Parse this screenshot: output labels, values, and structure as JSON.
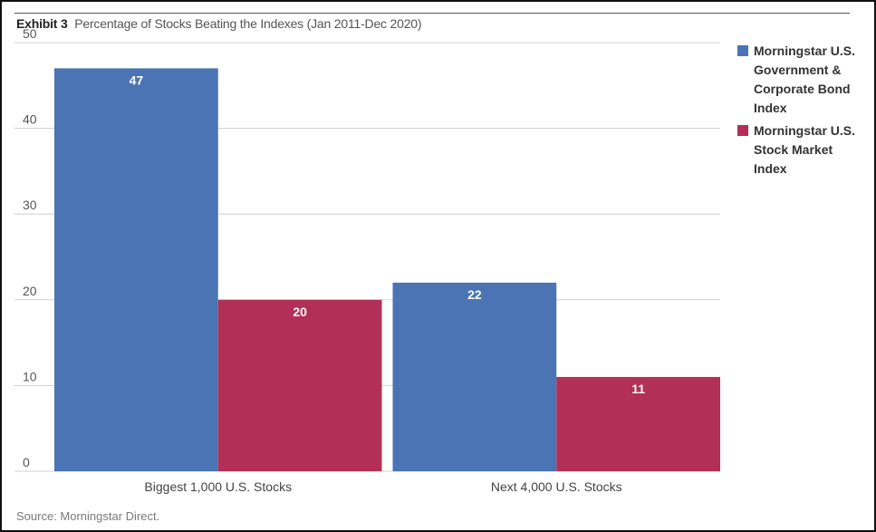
{
  "header": {
    "exhibit": "Exhibit 3",
    "title": "Percentage of Stocks Beating the Indexes (Jan 2011-Dec 2020)"
  },
  "source": "Source: Morningstar Direct.",
  "chart_data": {
    "type": "bar",
    "title": "Percentage of Stocks Beating the Indexes (Jan 2011-Dec 2020)",
    "xlabel": "",
    "ylabel": "",
    "categories": [
      "Biggest 1,000 U.S. Stocks",
      "Next 4,000 U.S. Stocks"
    ],
    "series": [
      {
        "name": "Morningstar U.S. Government & Corporate Bond Index",
        "values": [
          47,
          22
        ],
        "color": "#4a74b3"
      },
      {
        "name": "Morningstar U.S. Stock Market Index",
        "values": [
          20,
          11
        ],
        "color": "#b23057"
      }
    ],
    "ylim": [
      0,
      50
    ],
    "yticks": [
      0,
      10,
      20,
      30,
      40,
      50
    ],
    "grid": true,
    "legend_position": "right",
    "data_labels": true
  }
}
